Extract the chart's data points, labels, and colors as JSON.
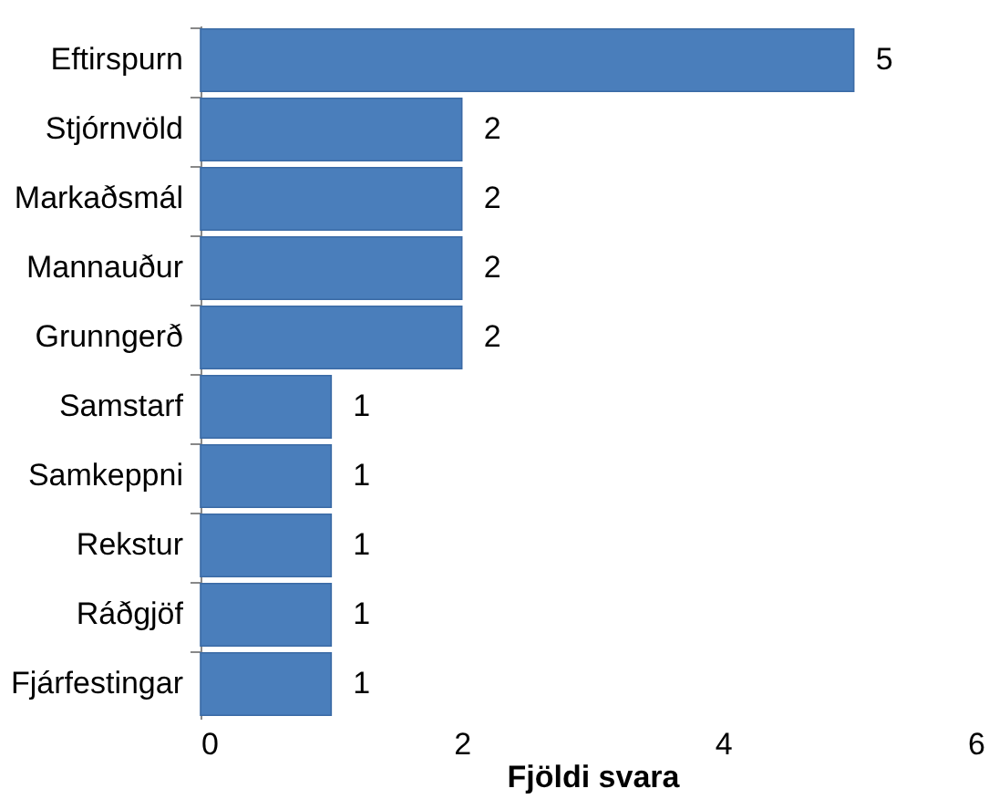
{
  "chart_data": {
    "type": "bar",
    "orientation": "horizontal",
    "xlabel": "Fjöldi svara",
    "categories": [
      "Eftirspurn",
      "Stjórnvöld",
      "Markaðsmál",
      "Mannauður",
      "Grunngerð",
      "Samstarf",
      "Samkeppni",
      "Rekstur",
      "Ráðgjöf",
      "Fjárfestingar"
    ],
    "values": [
      5,
      2,
      2,
      2,
      2,
      1,
      1,
      1,
      1,
      1
    ],
    "color": "#4a7ebb",
    "xlim": [
      0,
      6
    ],
    "xticks": [
      0,
      2,
      4,
      6
    ],
    "grid": false,
    "data_labels": true
  }
}
